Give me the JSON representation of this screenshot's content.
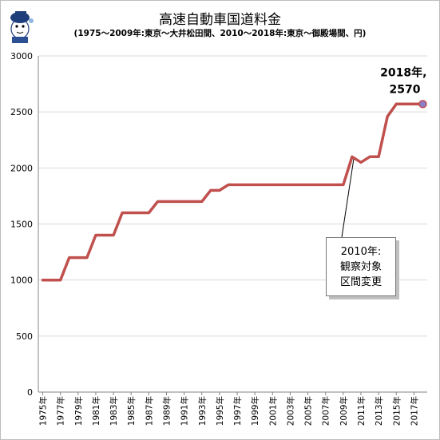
{
  "chart_data": {
    "type": "line",
    "title": "高速自動車国道料金",
    "subtitle": "(1975～2009年:東京～大井松田間、2010～2018年:東京～御殿場間、円)",
    "ylim": [
      0,
      3000
    ],
    "y_ticks": [
      "0",
      "500",
      "1000",
      "1500",
      "2000",
      "2500",
      "3000"
    ],
    "x_tick_labels": [
      "1975年",
      "1977年",
      "1979年",
      "1981年",
      "1983年",
      "1985年",
      "1987年",
      "1989年",
      "1991年",
      "1993年",
      "1995年",
      "1997年",
      "1999年",
      "2001年",
      "2003年",
      "2005年",
      "2007年",
      "2009年",
      "2011年",
      "2013年",
      "2015年",
      "2017年"
    ],
    "x": [
      1975,
      1976,
      1977,
      1978,
      1979,
      1980,
      1981,
      1982,
      1983,
      1984,
      1985,
      1986,
      1987,
      1988,
      1989,
      1990,
      1991,
      1992,
      1993,
      1994,
      1995,
      1996,
      1997,
      1998,
      1999,
      2000,
      2001,
      2002,
      2003,
      2004,
      2005,
      2006,
      2007,
      2008,
      2009,
      2010,
      2011,
      2012,
      2013,
      2014,
      2015,
      2016,
      2017,
      2018
    ],
    "series": [
      {
        "values": [
          1000,
          1000,
          1000,
          1200,
          1200,
          1200,
          1400,
          1400,
          1400,
          1600,
          1600,
          1600,
          1600,
          1700,
          1700,
          1700,
          1700,
          1700,
          1700,
          1800,
          1800,
          1850,
          1850,
          1850,
          1850,
          1850,
          1850,
          1850,
          1850,
          1850,
          1850,
          1850,
          1850,
          1850,
          1850,
          2100,
          2050,
          2100,
          2100,
          2460,
          2570,
          2570,
          2570,
          2570
        ]
      }
    ],
    "annotations": {
      "end_label_line1": "2018年,",
      "end_label_line2": "2570",
      "callout_line1": "2010年:",
      "callout_line2": "観察対象",
      "callout_line3": "区間変更"
    },
    "colors": {
      "line": "#c0504d",
      "end_marker": "#8a7fc9",
      "grid": "#d9d9d9"
    },
    "grid": true,
    "legend": "none"
  }
}
